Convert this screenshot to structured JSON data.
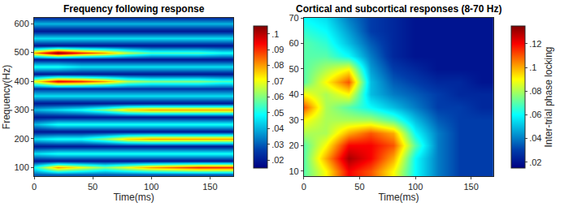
{
  "chart_data": [
    {
      "type": "heatmap",
      "title": "Frequency following response",
      "x_label": "Time(ms)",
      "y_label": "Frequency(Hz)",
      "x": [
        0,
        20,
        40,
        60,
        80,
        100,
        120,
        140,
        160,
        170
      ],
      "y": [
        75,
        100,
        125,
        150,
        175,
        200,
        225,
        250,
        275,
        300,
        325,
        350,
        375,
        400,
        425,
        450,
        475,
        500,
        525,
        550,
        575,
        600,
        625
      ],
      "z": [
        [
          0.03,
          0.03,
          0.03,
          0.03,
          0.03,
          0.03,
          0.03,
          0.03,
          0.03,
          0.03
        ],
        [
          0.05,
          0.08,
          0.07,
          0.06,
          0.07,
          0.08,
          0.085,
          0.09,
          0.09,
          0.09
        ],
        [
          0.02,
          0.02,
          0.02,
          0.02,
          0.02,
          0.02,
          0.02,
          0.02,
          0.02,
          0.02
        ],
        [
          0.045,
          0.05,
          0.05,
          0.05,
          0.05,
          0.05,
          0.05,
          0.05,
          0.05,
          0.05
        ],
        [
          0.02,
          0.02,
          0.02,
          0.02,
          0.02,
          0.02,
          0.02,
          0.02,
          0.02,
          0.02
        ],
        [
          0.045,
          0.05,
          0.05,
          0.06,
          0.075,
          0.08,
          0.08,
          0.08,
          0.08,
          0.08
        ],
        [
          0.02,
          0.02,
          0.02,
          0.02,
          0.02,
          0.02,
          0.02,
          0.02,
          0.02,
          0.02
        ],
        [
          0.04,
          0.05,
          0.05,
          0.05,
          0.05,
          0.05,
          0.05,
          0.05,
          0.05,
          0.05
        ],
        [
          0.02,
          0.02,
          0.02,
          0.02,
          0.02,
          0.02,
          0.02,
          0.02,
          0.02,
          0.02
        ],
        [
          0.04,
          0.045,
          0.05,
          0.06,
          0.075,
          0.08,
          0.08,
          0.08,
          0.08,
          0.08
        ],
        [
          0.02,
          0.02,
          0.02,
          0.02,
          0.02,
          0.02,
          0.02,
          0.02,
          0.02,
          0.02
        ],
        [
          0.045,
          0.045,
          0.045,
          0.045,
          0.045,
          0.045,
          0.045,
          0.045,
          0.045,
          0.045
        ],
        [
          0.025,
          0.025,
          0.025,
          0.025,
          0.025,
          0.025,
          0.025,
          0.025,
          0.025,
          0.025
        ],
        [
          0.07,
          0.095,
          0.09,
          0.08,
          0.065,
          0.06,
          0.06,
          0.06,
          0.055,
          0.055
        ],
        [
          0.02,
          0.02,
          0.02,
          0.02,
          0.02,
          0.02,
          0.02,
          0.02,
          0.02,
          0.02
        ],
        [
          0.05,
          0.05,
          0.045,
          0.045,
          0.045,
          0.045,
          0.045,
          0.045,
          0.045,
          0.045
        ],
        [
          0.02,
          0.02,
          0.02,
          0.02,
          0.02,
          0.02,
          0.02,
          0.02,
          0.02,
          0.02
        ],
        [
          0.08,
          0.105,
          0.09,
          0.08,
          0.065,
          0.055,
          0.055,
          0.055,
          0.05,
          0.05
        ],
        [
          0.02,
          0.02,
          0.02,
          0.02,
          0.02,
          0.02,
          0.02,
          0.02,
          0.02,
          0.02
        ],
        [
          0.045,
          0.045,
          0.045,
          0.045,
          0.045,
          0.045,
          0.045,
          0.045,
          0.045,
          0.045
        ],
        [
          0.02,
          0.02,
          0.02,
          0.02,
          0.02,
          0.02,
          0.02,
          0.02,
          0.02,
          0.02
        ],
        [
          0.04,
          0.04,
          0.04,
          0.04,
          0.04,
          0.04,
          0.04,
          0.04,
          0.04,
          0.04
        ],
        [
          0.02,
          0.02,
          0.02,
          0.02,
          0.02,
          0.02,
          0.02,
          0.02,
          0.02,
          0.02
        ]
      ],
      "xlim": [
        0,
        170
      ],
      "ylim": [
        70,
        620
      ],
      "xticks": [
        0,
        50,
        100,
        150
      ],
      "yticks": [
        100,
        200,
        300,
        400,
        500,
        600
      ],
      "colorbar": {
        "range": [
          0.015,
          0.105
        ],
        "ticks": [
          {
            "value": 0.02,
            "label": ".02"
          },
          {
            "value": 0.03,
            "label": ".03"
          },
          {
            "value": 0.04,
            "label": ".04"
          },
          {
            "value": 0.05,
            "label": ".05"
          },
          {
            "value": 0.06,
            "label": ".06"
          },
          {
            "value": 0.07,
            "label": ".07"
          },
          {
            "value": 0.08,
            "label": ".08"
          },
          {
            "value": 0.09,
            "label": ".09"
          },
          {
            "value": 0.1,
            "label": ".1"
          }
        ]
      }
    },
    {
      "type": "heatmap",
      "title": "Cortical and subcortical responses (8-70 Hz)",
      "x_label": "Time(ms)",
      "x": [
        0,
        20,
        40,
        60,
        80,
        100,
        120,
        140,
        160,
        170
      ],
      "y": [
        10,
        15,
        20,
        25,
        30,
        35,
        40,
        45,
        50,
        55,
        60,
        65,
        70
      ],
      "z": [
        [
          0.07,
          0.09,
          0.12,
          0.11,
          0.09,
          0.06,
          0.04,
          0.03,
          0.03,
          0.03
        ],
        [
          0.07,
          0.1,
          0.13,
          0.12,
          0.1,
          0.06,
          0.04,
          0.03,
          0.03,
          0.03
        ],
        [
          0.07,
          0.09,
          0.12,
          0.12,
          0.11,
          0.07,
          0.04,
          0.03,
          0.03,
          0.03
        ],
        [
          0.08,
          0.08,
          0.1,
          0.11,
          0.1,
          0.06,
          0.04,
          0.03,
          0.03,
          0.03
        ],
        [
          0.09,
          0.08,
          0.08,
          0.08,
          0.07,
          0.05,
          0.035,
          0.03,
          0.03,
          0.03
        ],
        [
          0.11,
          0.08,
          0.07,
          0.06,
          0.05,
          0.04,
          0.03,
          0.03,
          0.025,
          0.025
        ],
        [
          0.09,
          0.08,
          0.09,
          0.05,
          0.04,
          0.035,
          0.03,
          0.025,
          0.025,
          0.025
        ],
        [
          0.07,
          0.09,
          0.11,
          0.05,
          0.035,
          0.03,
          0.025,
          0.025,
          0.02,
          0.02
        ],
        [
          0.07,
          0.08,
          0.09,
          0.045,
          0.03,
          0.025,
          0.02,
          0.02,
          0.02,
          0.02
        ],
        [
          0.07,
          0.07,
          0.06,
          0.04,
          0.025,
          0.02,
          0.02,
          0.02,
          0.02,
          0.02
        ],
        [
          0.07,
          0.065,
          0.05,
          0.035,
          0.025,
          0.02,
          0.02,
          0.02,
          0.02,
          0.02
        ],
        [
          0.065,
          0.06,
          0.045,
          0.03,
          0.025,
          0.02,
          0.02,
          0.02,
          0.02,
          0.02
        ],
        [
          0.06,
          0.055,
          0.04,
          0.03,
          0.025,
          0.02,
          0.02,
          0.02,
          0.02,
          0.02
        ]
      ],
      "xlim": [
        0,
        170
      ],
      "ylim": [
        8,
        70
      ],
      "xticks": [
        0,
        50,
        100,
        150
      ],
      "yticks": [
        10,
        20,
        30,
        40,
        50,
        60,
        70
      ],
      "colorbar": {
        "range": [
          0.015,
          0.135
        ],
        "title": "Inter-trial phase locking",
        "ticks": [
          {
            "value": 0.02,
            "label": ".02"
          },
          {
            "value": 0.04,
            "label": ".04"
          },
          {
            "value": 0.06,
            "label": ".06"
          },
          {
            "value": 0.08,
            "label": ".08"
          },
          {
            "value": 0.1,
            "label": ".1"
          },
          {
            "value": 0.12,
            "label": ".12"
          }
        ]
      }
    }
  ]
}
